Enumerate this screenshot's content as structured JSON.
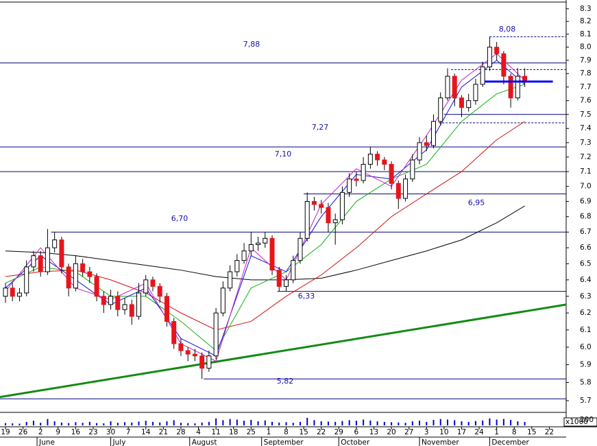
{
  "chart_data": {
    "type": "candlestick",
    "scale": "log",
    "xlim": [
      -1.56,
      159.8
    ],
    "ylim": [
      5.64,
      8.37
    ],
    "yticks": [
      5.7,
      5.8,
      5.9,
      {
        "value": 6,
        "label": "6.0"
      },
      6.1,
      6.2,
      6.3,
      6.4,
      6.5,
      6.6,
      6.7,
      6.8,
      6.9,
      {
        "value": 7,
        "label": "7.0"
      },
      7.1,
      7.2,
      7.3,
      7.4,
      7.5,
      7.6,
      7.7,
      7.8,
      7.9,
      {
        "value": 8,
        "label": "8.0"
      },
      8.1,
      8.2,
      8.3
    ],
    "xticks": [
      {
        "value": 0,
        "label": "19"
      },
      {
        "value": 5,
        "label": "26"
      },
      {
        "value": 10,
        "label": "2"
      },
      {
        "value": 15,
        "label": "9"
      },
      {
        "value": 20,
        "label": "16"
      },
      {
        "value": 25,
        "label": "23"
      },
      {
        "value": 30,
        "label": "30"
      },
      {
        "value": 35,
        "label": "7"
      },
      {
        "value": 40,
        "label": "14"
      },
      {
        "value": 45,
        "label": "21"
      },
      {
        "value": 50,
        "label": "28"
      },
      {
        "value": 55,
        "label": "4"
      },
      {
        "value": 60,
        "label": "11"
      },
      {
        "value": 65,
        "label": "18"
      },
      {
        "value": 70,
        "label": "25"
      },
      {
        "value": 75,
        "label": "1"
      },
      {
        "value": 80,
        "label": "8"
      },
      {
        "value": 85,
        "label": "15"
      },
      {
        "value": 90,
        "label": "22"
      },
      {
        "value": 95,
        "label": "29"
      },
      {
        "value": 100,
        "label": "6"
      },
      {
        "value": 105,
        "label": "13"
      },
      {
        "value": 110,
        "label": "20"
      },
      {
        "value": 115,
        "label": "27"
      },
      {
        "value": 120,
        "label": "3"
      },
      {
        "value": 125,
        "label": "10"
      },
      {
        "value": 130,
        "label": "17"
      },
      {
        "value": 135,
        "label": "24"
      },
      {
        "value": 140,
        "label": "1"
      },
      {
        "value": 145,
        "label": "8"
      },
      {
        "value": 150,
        "label": "15"
      },
      {
        "value": 155,
        "label": "22"
      }
    ],
    "months": [
      {
        "value": 9,
        "label": "June"
      },
      {
        "value": 30,
        "label": "July"
      },
      {
        "value": 52.5,
        "label": "August"
      },
      {
        "value": 73,
        "label": "September"
      },
      {
        "value": 95,
        "label": "October"
      },
      {
        "value": 118,
        "label": "November"
      },
      {
        "value": 138,
        "label": "December"
      }
    ],
    "up_color": "#ffffff",
    "down_color": "#e8141c",
    "candles": [
      [
        0,
        6.3,
        6.38,
        6.26,
        6.35
      ],
      [
        2,
        6.35,
        6.38,
        6.27,
        6.3
      ],
      [
        4,
        6.3,
        6.35,
        6.27,
        6.32
      ],
      [
        6,
        6.32,
        6.52,
        6.3,
        6.48
      ],
      [
        8,
        6.48,
        6.58,
        6.45,
        6.55
      ],
      [
        10,
        6.55,
        6.58,
        6.42,
        6.45
      ],
      [
        12,
        6.45,
        6.72,
        6.43,
        6.6
      ],
      [
        14,
        6.6,
        6.7,
        6.57,
        6.65
      ],
      [
        16,
        6.65,
        6.67,
        6.44,
        6.48
      ],
      [
        18,
        6.48,
        6.5,
        6.3,
        6.35
      ],
      [
        20,
        6.35,
        6.55,
        6.33,
        6.5
      ],
      [
        22,
        6.5,
        6.53,
        6.42,
        6.45
      ],
      [
        24,
        6.45,
        6.48,
        6.38,
        6.42
      ],
      [
        26,
        6.42,
        6.44,
        6.27,
        6.3
      ],
      [
        28,
        6.3,
        6.33,
        6.2,
        6.25
      ],
      [
        30,
        6.25,
        6.34,
        6.22,
        6.3
      ],
      [
        32,
        6.3,
        6.33,
        6.18,
        6.22
      ],
      [
        34,
        6.22,
        6.29,
        6.19,
        6.25
      ],
      [
        36,
        6.25,
        6.28,
        6.13,
        6.18
      ],
      [
        38,
        6.18,
        6.38,
        6.16,
        6.32
      ],
      [
        40,
        6.32,
        6.43,
        6.3,
        6.4
      ],
      [
        42,
        6.4,
        6.42,
        6.33,
        6.36
      ],
      [
        44,
        6.36,
        6.38,
        6.26,
        6.3
      ],
      [
        46,
        6.3,
        6.32,
        6.12,
        6.15
      ],
      [
        48,
        6.15,
        6.17,
        5.99,
        6.02
      ],
      [
        50,
        6.02,
        6.05,
        5.95,
        5.98
      ],
      [
        52,
        5.98,
        6.0,
        5.92,
        5.96
      ],
      [
        54,
        5.96,
        5.99,
        5.92,
        5.95
      ],
      [
        56,
        5.95,
        5.97,
        5.82,
        5.88
      ],
      [
        58,
        5.88,
        5.98,
        5.86,
        5.95
      ],
      [
        60,
        5.95,
        6.23,
        5.93,
        6.2
      ],
      [
        62,
        6.2,
        6.39,
        6.18,
        6.35
      ],
      [
        64,
        6.35,
        6.49,
        6.33,
        6.45
      ],
      [
        66,
        6.45,
        6.56,
        6.42,
        6.52
      ],
      [
        68,
        6.52,
        6.63,
        6.5,
        6.58
      ],
      [
        70,
        6.58,
        6.7,
        6.55,
        6.62
      ],
      [
        72,
        6.62,
        6.67,
        6.58,
        6.63
      ],
      [
        74,
        6.63,
        6.7,
        6.6,
        6.66
      ],
      [
        76,
        6.66,
        6.68,
        6.43,
        6.46
      ],
      [
        78,
        6.46,
        6.48,
        6.33,
        6.36
      ],
      [
        80,
        6.36,
        6.43,
        6.33,
        6.4
      ],
      [
        82,
        6.4,
        6.55,
        6.38,
        6.52
      ],
      [
        84,
        6.52,
        6.7,
        6.5,
        6.66
      ],
      [
        86,
        6.66,
        6.96,
        6.64,
        6.9
      ],
      [
        88,
        6.9,
        6.93,
        6.84,
        6.88
      ],
      [
        90,
        6.88,
        6.91,
        6.82,
        6.86
      ],
      [
        92,
        6.86,
        6.89,
        6.7,
        6.76
      ],
      [
        94,
        6.76,
        6.82,
        6.62,
        6.78
      ],
      [
        96,
        6.78,
        7.0,
        6.75,
        6.96
      ],
      [
        98,
        6.96,
        7.09,
        6.93,
        7.05
      ],
      [
        100,
        7.05,
        7.1,
        7.0,
        7.04
      ],
      [
        102,
        7.04,
        7.2,
        7.02,
        7.15
      ],
      [
        104,
        7.15,
        7.27,
        7.12,
        7.22
      ],
      [
        106,
        7.22,
        7.24,
        7.14,
        7.18
      ],
      [
        108,
        7.18,
        7.2,
        7.11,
        7.15
      ],
      [
        110,
        7.15,
        7.17,
        6.98,
        7.02
      ],
      [
        112,
        7.02,
        7.04,
        6.85,
        6.92
      ],
      [
        114,
        6.92,
        7.08,
        6.9,
        7.05
      ],
      [
        116,
        7.05,
        7.22,
        7.03,
        7.18
      ],
      [
        118,
        7.18,
        7.34,
        7.15,
        7.3
      ],
      [
        120,
        7.3,
        7.35,
        7.24,
        7.28
      ],
      [
        122,
        7.28,
        7.5,
        7.26,
        7.45
      ],
      [
        124,
        7.45,
        7.66,
        7.42,
        7.62
      ],
      [
        126,
        7.62,
        7.84,
        7.6,
        7.78
      ],
      [
        128,
        7.78,
        7.8,
        7.56,
        7.62
      ],
      [
        130,
        7.62,
        7.64,
        7.48,
        7.55
      ],
      [
        132,
        7.55,
        7.65,
        7.52,
        7.6
      ],
      [
        134,
        7.6,
        7.76,
        7.57,
        7.72
      ],
      [
        136,
        7.72,
        7.89,
        7.7,
        7.85
      ],
      [
        138,
        7.85,
        8.08,
        7.82,
        8.0
      ],
      [
        140,
        8.0,
        8.04,
        7.9,
        7.95
      ],
      [
        142,
        7.95,
        7.97,
        7.72,
        7.78
      ],
      [
        144,
        7.78,
        7.8,
        7.55,
        7.62
      ],
      [
        146,
        7.62,
        7.84,
        7.6,
        7.78
      ],
      [
        148,
        7.78,
        7.84,
        7.7,
        7.74
      ]
    ],
    "moving_averages": {
      "x": [
        0,
        10,
        20,
        30,
        40,
        50,
        60,
        70,
        80,
        90,
        100,
        110,
        120,
        130,
        140,
        148
      ],
      "series": [
        {
          "color": "#000000",
          "values": [
            6.58,
            6.57,
            6.55,
            6.52,
            6.49,
            6.46,
            6.42,
            6.4,
            6.4,
            6.41,
            6.46,
            6.52,
            6.58,
            6.65,
            6.76,
            6.87
          ]
        },
        {
          "color": "#d01010",
          "values": [
            6.42,
            6.45,
            6.46,
            6.4,
            6.32,
            6.2,
            6.1,
            6.15,
            6.3,
            6.43,
            6.6,
            6.8,
            6.95,
            7.1,
            7.32,
            7.45
          ]
        },
        {
          "color": "#10b010",
          "values": [
            6.38,
            6.48,
            6.45,
            6.3,
            6.3,
            6.15,
            5.98,
            6.35,
            6.45,
            6.62,
            6.9,
            7.05,
            7.15,
            7.45,
            7.65,
            7.72
          ]
        },
        {
          "color": "#1010e0",
          "values": [
            6.35,
            6.55,
            6.4,
            6.25,
            6.35,
            6.05,
            5.95,
            6.55,
            6.45,
            6.8,
            7.08,
            7.05,
            7.25,
            7.7,
            7.9,
            7.72
          ]
        },
        {
          "color": "#c020c0",
          "values": [
            6.33,
            6.6,
            6.35,
            6.28,
            6.38,
            6.02,
            5.92,
            6.6,
            6.4,
            6.88,
            7.12,
            7.0,
            7.35,
            7.75,
            7.95,
            7.75
          ]
        }
      ]
    },
    "levels": [
      {
        "value": 8.08,
        "label": "8,08",
        "from": 138,
        "dash": true
      },
      {
        "value": 7.88,
        "label": "7,88",
        "from": -1.56
      },
      {
        "value": 7.27,
        "label": "7,27",
        "from": -1.56
      },
      {
        "value": 7.1,
        "label": "7,10",
        "from": -1.56
      },
      {
        "value": 6.95,
        "label": "6,95",
        "from": 85
      },
      {
        "value": 6.7,
        "label": "6,70",
        "from": 13
      },
      {
        "value": 6.33,
        "label": "6,33",
        "from": 77.5
      },
      {
        "value": 5.82,
        "label": "5,82",
        "from": 56.5
      }
    ],
    "lines": [
      {
        "value": 7.83,
        "from": 127,
        "dash": true
      },
      {
        "value": 7.44,
        "from": 123.5,
        "dash": true
      },
      {
        "value": 7.5,
        "from": 125
      },
      {
        "value": 5.71,
        "from": -1.56
      }
    ],
    "support_line": {
      "value": 7.74,
      "from": 136.5,
      "to": 156,
      "color": "#0000ff"
    },
    "trendline": {
      "x": [
        -1.56,
        159.8
      ],
      "values": [
        5.72,
        6.25
      ],
      "color": "#138a13"
    },
    "volume": {
      "unit": "x1000",
      "ylim": [
        0,
        200
      ],
      "yticks": [
        200
      ],
      "color": "#0000c0",
      "values": [
        40,
        35,
        30,
        60,
        80,
        45,
        110,
        70,
        50,
        40,
        55,
        45,
        60,
        40,
        35,
        70,
        45,
        55,
        50,
        65,
        80,
        60,
        50,
        70,
        90,
        45,
        40,
        35,
        50,
        60,
        120,
        90,
        110,
        100,
        80,
        95,
        70,
        85,
        60,
        50,
        55,
        45,
        60,
        130,
        90,
        70,
        65,
        60,
        75,
        90,
        80,
        100,
        85,
        70,
        60,
        55,
        50,
        45,
        70,
        80,
        60,
        95,
        110,
        100,
        90,
        70,
        60,
        75,
        85,
        120,
        100,
        110,
        95,
        70,
        60
      ]
    }
  }
}
